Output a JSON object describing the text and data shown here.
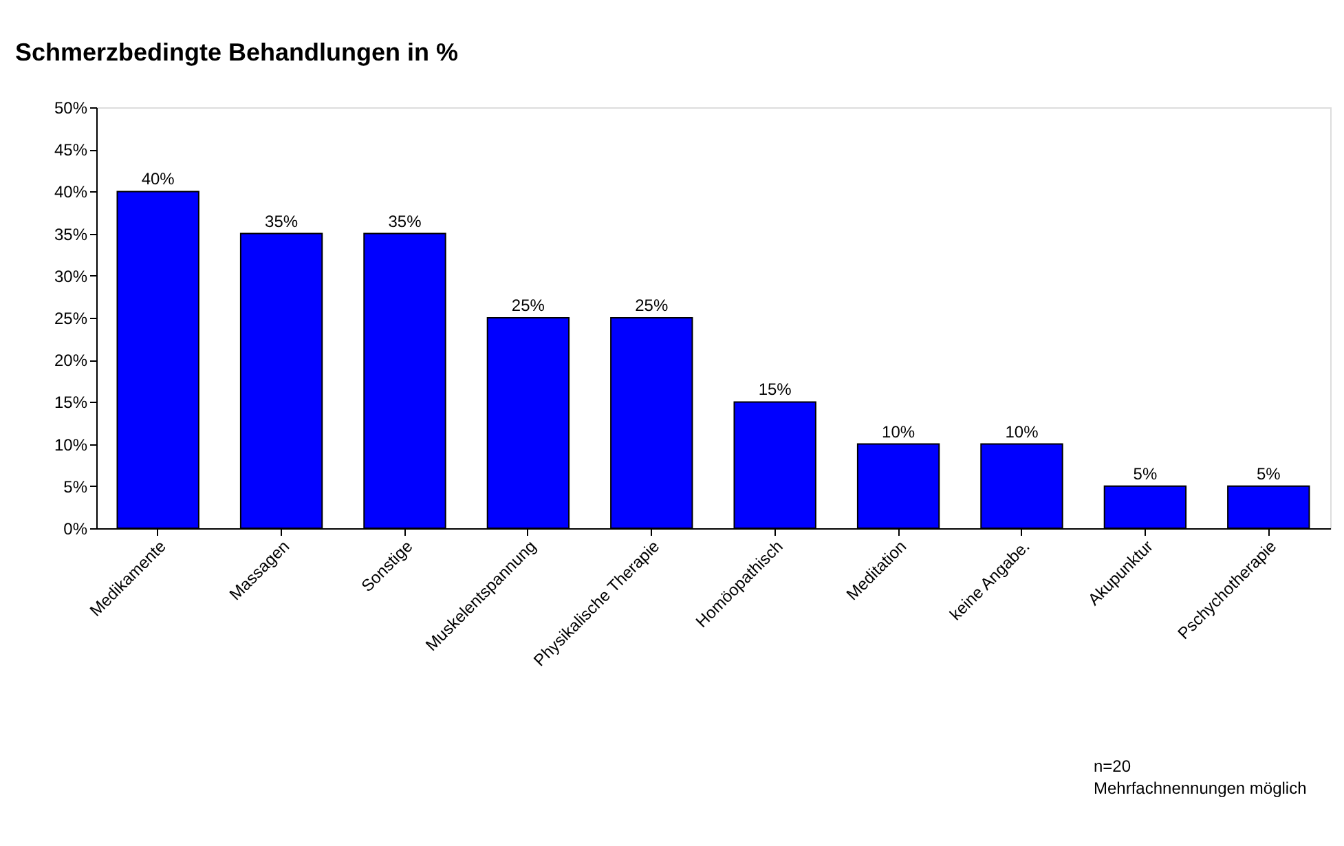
{
  "chart_data": {
    "type": "bar",
    "title": "Schmerzbedingte Behandlungen in %",
    "categories": [
      "Medikamente",
      "Massagen",
      "Sonstige",
      "Muskelentspannung",
      "Physikalische Therapie",
      "Homöopathisch",
      "Meditation",
      "keine Angabe.",
      "Akupunktur",
      "Pschychotherapie"
    ],
    "values": [
      40,
      35,
      35,
      25,
      25,
      15,
      10,
      10,
      5,
      5
    ],
    "value_labels": [
      "40%",
      "35%",
      "35%",
      "25%",
      "25%",
      "15%",
      "10%",
      "10%",
      "5%",
      "5%"
    ],
    "color": "#0000ff",
    "ylim": [
      0,
      50
    ],
    "yticks": [
      {
        "value": 0,
        "label": "0%"
      },
      {
        "value": 5,
        "label": "5%"
      },
      {
        "value": 10,
        "label": "10%"
      },
      {
        "value": 15,
        "label": "15%"
      },
      {
        "value": 20,
        "label": "20%"
      },
      {
        "value": 25,
        "label": "25%"
      },
      {
        "value": 30,
        "label": "30%"
      },
      {
        "value": 35,
        "label": "35%"
      },
      {
        "value": 40,
        "label": "40%"
      },
      {
        "value": 45,
        "label": "45%"
      },
      {
        "value": 50,
        "label": "50%"
      }
    ],
    "annotations": [
      "n=20",
      "Mehrfachnennungen möglich"
    ]
  }
}
